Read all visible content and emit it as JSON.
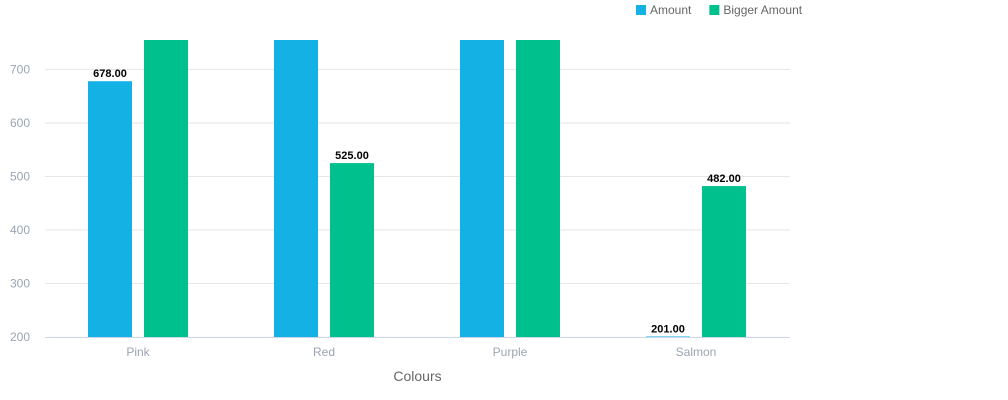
{
  "chart_data": {
    "type": "bar",
    "categories": [
      "Pink",
      "Red",
      "Purple",
      "Salmon"
    ],
    "series": [
      {
        "name": "Amount",
        "color": "#14b1e4",
        "values": [
          678,
          760,
          760,
          201
        ],
        "data_labels": [
          "678.00",
          null,
          null,
          "201.00"
        ]
      },
      {
        "name": "Bigger Amount",
        "color": "#00c08d",
        "values": [
          760,
          525,
          760,
          482
        ],
        "data_labels": [
          null,
          "525.00",
          null,
          "482.00"
        ]
      }
    ],
    "xlabel": "Colours",
    "ylabel": "",
    "ylim": [
      200,
      755
    ],
    "yticks": [
      200,
      300,
      400,
      500,
      600,
      700
    ],
    "grid": true,
    "legend_position": "top-right",
    "grid_color": "#e6e6e6",
    "axis_color": "#ccd6eb"
  }
}
